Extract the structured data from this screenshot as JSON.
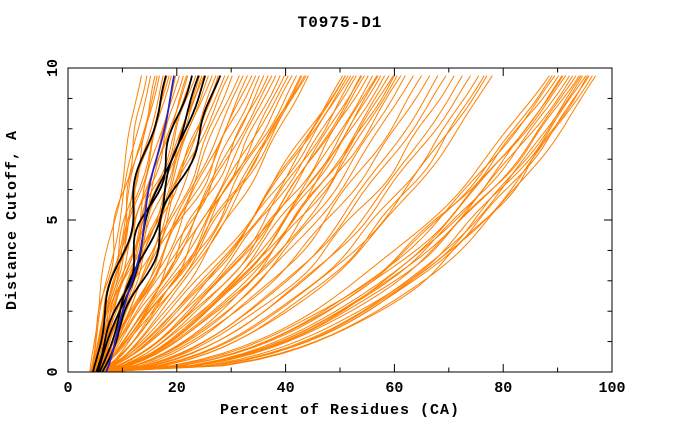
{
  "chart_data": {
    "type": "line",
    "title": "T0975-D1",
    "xlabel": "Percent of Residues (CA)",
    "ylabel": "Distance Cutoff, A",
    "xlim": [
      0,
      100
    ],
    "ylim": [
      0,
      10
    ],
    "x_major_ticks": [
      0,
      20,
      40,
      60,
      80,
      100
    ],
    "x_minor_ticks": [
      10,
      30,
      50,
      70,
      90
    ],
    "y_major_ticks": [
      0,
      5,
      10
    ],
    "y_minor_ticks": [
      1,
      2,
      3,
      4,
      6,
      7,
      8,
      9
    ],
    "grid": false,
    "legend": "none",
    "background": "#ffffff",
    "frame_color": "#000000",
    "curve_ymax": 9.75,
    "param_order": [
      "start_pct",
      "end_pct_at_max_cutoff",
      "shape_power",
      "wiggle_amp",
      "wiggle_freq",
      "wiggle_phase"
    ],
    "series": [
      {
        "name": "orange-models",
        "color": "#ff8000",
        "width": 1,
        "curves": [
          [
            4.0,
            13.5,
            1.15,
            0.5,
            2,
            0.3
          ],
          [
            4.2,
            14.5,
            1.1,
            0.7,
            3,
            1.1
          ],
          [
            4.5,
            15.2,
            1.2,
            0.4,
            2,
            2.2
          ],
          [
            4.8,
            16.0,
            1.05,
            0.8,
            2.5,
            0.8
          ],
          [
            5.0,
            16.8,
            1.1,
            0.5,
            3,
            1.9
          ],
          [
            4.3,
            17.5,
            1.0,
            0.6,
            2,
            2.8
          ],
          [
            5.5,
            18.2,
            1.12,
            0.9,
            2.5,
            0.5
          ],
          [
            4.6,
            19.0,
            1.05,
            0.5,
            3,
            1.5
          ],
          [
            5.8,
            19.8,
            1.0,
            0.7,
            2,
            2.5
          ],
          [
            5.2,
            20.5,
            1.08,
            0.4,
            2.5,
            3.1
          ],
          [
            4.4,
            21.2,
            0.98,
            0.8,
            3,
            0.9
          ],
          [
            6.0,
            22.0,
            1.1,
            0.6,
            2,
            1.7
          ],
          [
            5.4,
            22.8,
            1.0,
            0.5,
            2.5,
            2.9
          ],
          [
            4.7,
            23.5,
            1.05,
            0.9,
            3,
            0.4
          ],
          [
            6.2,
            24.2,
            0.95,
            0.6,
            2,
            1.3
          ],
          [
            5.0,
            25.0,
            1.02,
            0.7,
            2.5,
            2.1
          ],
          [
            5.6,
            25.8,
            0.98,
            0.5,
            3,
            3.0
          ],
          [
            4.9,
            26.5,
            1.0,
            0.8,
            2,
            0.6
          ],
          [
            6.4,
            27.2,
            0.95,
            0.6,
            2.5,
            1.8
          ],
          [
            5.3,
            28.0,
            1.0,
            0.7,
            3,
            2.6
          ],
          [
            5.9,
            28.8,
            0.92,
            0.5,
            2,
            0.2
          ],
          [
            4.5,
            29.5,
            0.98,
            0.8,
            2.5,
            1.0
          ],
          [
            6.1,
            30.2,
            0.9,
            0.6,
            3,
            2.0
          ],
          [
            5.1,
            16.4,
            1.18,
            0.5,
            2,
            2.4
          ],
          [
            4.8,
            21.8,
            1.03,
            0.7,
            2.5,
            0.7
          ],
          [
            5.7,
            24.6,
            0.97,
            0.6,
            3,
            1.6
          ],
          [
            6.3,
            27.6,
            0.93,
            0.8,
            2,
            2.3
          ],
          [
            4.6,
            18.6,
            1.07,
            0.5,
            2.5,
            3.2
          ],
          [
            4.5,
            31.5,
            0.88,
            0.8,
            2,
            0.5
          ],
          [
            5.2,
            33.0,
            0.85,
            0.6,
            2.5,
            1.4
          ],
          [
            4.8,
            34.5,
            0.9,
            0.9,
            3,
            2.2
          ],
          [
            5.8,
            36.0,
            0.82,
            0.7,
            2,
            3.0
          ],
          [
            4.4,
            37.5,
            0.86,
            0.5,
            2.5,
            0.9
          ],
          [
            6.0,
            39.0,
            0.8,
            0.8,
            3,
            1.8
          ],
          [
            5.0,
            40.5,
            0.84,
            0.6,
            2,
            2.7
          ],
          [
            5.5,
            42.0,
            0.78,
            0.9,
            2.5,
            0.3
          ],
          [
            4.6,
            43.5,
            0.82,
            0.7,
            3,
            1.2
          ],
          [
            6.2,
            43.0,
            0.75,
            0.5,
            2,
            2.0
          ],
          [
            4.9,
            43.8,
            0.8,
            0.8,
            2.5,
            2.9
          ],
          [
            5.6,
            52.0,
            0.72,
            0.6,
            3,
            0.7
          ],
          [
            5.3,
            51.0,
            0.76,
            0.9,
            2,
            1.6
          ],
          [
            4.7,
            32.2,
            0.87,
            0.5,
            2.5,
            2.4
          ],
          [
            5.9,
            35.2,
            0.83,
            0.7,
            3,
            3.1
          ],
          [
            5.1,
            38.2,
            0.81,
            0.6,
            2,
            0.4
          ],
          [
            4.5,
            41.2,
            0.79,
            0.8,
            2.5,
            1.3
          ],
          [
            6.1,
            44.2,
            0.74,
            0.5,
            3,
            2.1
          ],
          [
            5.4,
            51.5,
            0.73,
            0.7,
            2,
            2.8
          ],
          [
            4.8,
            50.5,
            0.7,
            0.6,
            2.5,
            0.8
          ],
          [
            5.0,
            36.8,
            0.84,
            0.9,
            3,
            1.5
          ],
          [
            5.7,
            42.8,
            0.77,
            0.5,
            2,
            2.3
          ],
          [
            4.6,
            33.8,
            0.88,
            0.7,
            2.5,
            3.2
          ],
          [
            6.3,
            39.8,
            0.79,
            0.6,
            3,
            0.6
          ],
          [
            4.8,
            51.0,
            0.66,
            0.6,
            2,
            0.5
          ],
          [
            5.4,
            52.5,
            0.64,
            0.8,
            2.5,
            1.3
          ],
          [
            4.5,
            53.0,
            0.67,
            0.5,
            3,
            2.1
          ],
          [
            5.9,
            53.8,
            0.62,
            0.7,
            2,
            2.9
          ],
          [
            5.1,
            54.5,
            0.65,
            0.6,
            2.5,
            0.7
          ],
          [
            4.7,
            55.2,
            0.63,
            0.8,
            3,
            1.5
          ],
          [
            5.6,
            56.0,
            0.6,
            0.5,
            2,
            2.3
          ],
          [
            5.2,
            56.8,
            0.62,
            0.7,
            2.5,
            3.1
          ],
          [
            4.9,
            57.5,
            0.59,
            0.6,
            3,
            0.9
          ],
          [
            6.0,
            58.2,
            0.61,
            0.8,
            2,
            1.7
          ],
          [
            5.3,
            59.0,
            0.58,
            0.5,
            2.5,
            2.5
          ],
          [
            4.6,
            59.8,
            0.6,
            0.7,
            3,
            0.3
          ],
          [
            5.8,
            60.5,
            0.56,
            0.6,
            2,
            1.1
          ],
          [
            5.0,
            61.2,
            0.58,
            0.8,
            2.5,
            1.9
          ],
          [
            5.5,
            62.0,
            0.55,
            0.5,
            3,
            2.7
          ],
          [
            4.8,
            54.0,
            0.64,
            0.7,
            2,
            0.8
          ],
          [
            5.7,
            57.0,
            0.6,
            0.6,
            2.5,
            1.6
          ],
          [
            5.2,
            60.0,
            0.57,
            0.8,
            3,
            2.4
          ],
          [
            5.0,
            63.5,
            0.55,
            0.6,
            2,
            0.6
          ],
          [
            5.5,
            65.0,
            0.53,
            0.8,
            2.5,
            1.4
          ],
          [
            4.7,
            66.5,
            0.54,
            0.5,
            3,
            2.2
          ],
          [
            5.9,
            68.0,
            0.51,
            0.7,
            2,
            3.0
          ],
          [
            5.2,
            69.5,
            0.52,
            0.6,
            2.5,
            1.0
          ],
          [
            4.8,
            71.0,
            0.5,
            0.8,
            3,
            1.8
          ],
          [
            5.6,
            72.5,
            0.49,
            0.5,
            2,
            2.6
          ],
          [
            5.1,
            74.0,
            0.5,
            0.7,
            2.5,
            0.4
          ],
          [
            4.9,
            75.5,
            0.47,
            0.6,
            3,
            1.2
          ],
          [
            5.7,
            77.0,
            0.48,
            0.8,
            2,
            2.0
          ],
          [
            5.3,
            78.0,
            0.46,
            0.5,
            2.5,
            2.8
          ],
          [
            5.0,
            76.5,
            0.45,
            0.7,
            3,
            0.9
          ],
          [
            4.8,
            88.5,
            0.46,
            0.7,
            2,
            0.5
          ],
          [
            5.3,
            89.5,
            0.44,
            0.5,
            2.5,
            1.3
          ],
          [
            4.6,
            90.2,
            0.45,
            0.8,
            3,
            2.1
          ],
          [
            5.7,
            90.8,
            0.42,
            0.6,
            2,
            2.9
          ],
          [
            5.0,
            91.5,
            0.44,
            0.7,
            2.5,
            0.7
          ],
          [
            4.7,
            92.2,
            0.41,
            0.5,
            3,
            1.5
          ],
          [
            5.5,
            92.8,
            0.42,
            0.8,
            2,
            2.3
          ],
          [
            5.1,
            93.4,
            0.4,
            0.6,
            2.5,
            3.1
          ],
          [
            4.9,
            94.0,
            0.41,
            0.7,
            3,
            0.9
          ],
          [
            5.8,
            94.6,
            0.38,
            0.5,
            2,
            1.7
          ],
          [
            5.2,
            95.2,
            0.39,
            0.8,
            2.5,
            2.5
          ],
          [
            4.6,
            95.8,
            0.37,
            0.6,
            3,
            0.3
          ],
          [
            5.6,
            96.4,
            0.38,
            0.7,
            2,
            1.1
          ],
          [
            5.0,
            97.0,
            0.36,
            0.5,
            2.5,
            1.9
          ],
          [
            5.4,
            95.5,
            0.35,
            0.8,
            3,
            2.7
          ],
          [
            4.8,
            91.0,
            0.4,
            0.6,
            2,
            0.8
          ],
          [
            5.5,
            94.3,
            0.37,
            0.7,
            2.5,
            1.6
          ],
          [
            5.1,
            89.0,
            0.43,
            0.5,
            3,
            2.4
          ]
        ]
      },
      {
        "name": "black-models",
        "color": "#000000",
        "width": 1.8,
        "curves": [
          [
            4.6,
            18.0,
            1.05,
            1.0,
            2.5,
            0.5
          ],
          [
            5.2,
            22.8,
            1.0,
            1.1,
            3,
            2.0
          ],
          [
            5.5,
            24.0,
            0.99,
            0.9,
            2,
            4.0
          ],
          [
            5.8,
            25.2,
            0.97,
            1.0,
            2.2,
            1.0
          ],
          [
            6.3,
            28.0,
            0.95,
            1.2,
            2.8,
            1.2
          ]
        ]
      },
      {
        "name": "blue-model",
        "color": "#2222cc",
        "width": 1.8,
        "curves": [
          [
            7.0,
            19.5,
            0.85,
            0.5,
            2,
            3.0
          ]
        ]
      }
    ]
  }
}
